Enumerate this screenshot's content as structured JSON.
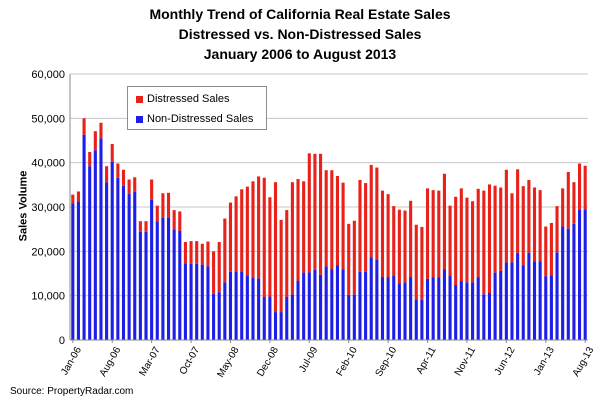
{
  "title": {
    "line1": "Monthly Trend of California Real Estate Sales",
    "line2": "Distressed vs. Non-Distressed Sales",
    "line3": "January 2006 to August 2013"
  },
  "source": "Source: PropertyRadar.com",
  "colors": {
    "distressed": "#e8211b",
    "non_distressed": "#1f1ee8",
    "grid": "#c8c8c8",
    "axis": "#888888"
  },
  "chart_data": {
    "type": "bar",
    "stacked": true,
    "title": "Monthly Trend of California Real Estate Sales",
    "subtitle": "Distressed vs. Non-Distressed Sales / January 2006 to August 2013",
    "ylabel": "Sales Volume",
    "xlabel": "",
    "ylim": [
      0,
      60000
    ],
    "yticks": [
      "0",
      "10,000",
      "20,000",
      "30,000",
      "40,000",
      "50,000",
      "60,000"
    ],
    "ytick_values": [
      0,
      10000,
      20000,
      30000,
      40000,
      50000,
      60000
    ],
    "grid": true,
    "legend": "top-left",
    "xtick_labels": [
      "Jan-06",
      "Aug-06",
      "Mar-07",
      "Oct-07",
      "May-08",
      "Dec-08",
      "Jul-09",
      "Feb-10",
      "Sep-10",
      "Apr-11",
      "Nov-11",
      "Jun-12",
      "Jan-13",
      "Aug-13"
    ],
    "xtick_indices": [
      0,
      7,
      14,
      21,
      28,
      35,
      42,
      49,
      56,
      63,
      70,
      77,
      84,
      91
    ],
    "series": [
      {
        "name": "Non-Distressed Sales",
        "values": [
          30800,
          31300,
          46300,
          39200,
          42800,
          45500,
          35600,
          40200,
          36600,
          34800,
          33000,
          33400,
          24400,
          24400,
          31600,
          26800,
          27600,
          27600,
          25000,
          24600,
          17300,
          17200,
          17200,
          17000,
          16600,
          10400,
          10800,
          13000,
          15400,
          15500,
          15500,
          14600,
          14000,
          13900,
          9700,
          9800,
          6300,
          6300,
          9700,
          10300,
          13400,
          15200,
          15300,
          15800,
          14700,
          16600,
          15900,
          16900,
          15900,
          10200,
          10300,
          15400,
          15400,
          18600,
          18200,
          14200,
          14200,
          14600,
          12800,
          13000,
          14200,
          9200,
          9100,
          13800,
          14100,
          14100,
          15900,
          14600,
          12400,
          13300,
          13000,
          13000,
          14100,
          10300,
          10600,
          15200,
          15600,
          17500,
          17500,
          19600,
          16800,
          19700,
          17700,
          17700,
          14400,
          14600,
          19800,
          25600,
          25100,
          26200,
          29400,
          29500
        ]
      },
      {
        "name": "Distressed Sales",
        "values": [
          2000,
          2200,
          3700,
          3200,
          4300,
          3500,
          3600,
          4000,
          3200,
          3600,
          3200,
          3300,
          2400,
          2400,
          4600,
          3500,
          5500,
          5600,
          4300,
          4400,
          4800,
          5100,
          5100,
          4700,
          5600,
          9600,
          11300,
          14400,
          15600,
          16900,
          18500,
          20000,
          21800,
          23000,
          26900,
          22400,
          29300,
          20800,
          19600,
          25300,
          22900,
          20600,
          26800,
          26200,
          27300,
          21700,
          22400,
          20100,
          19600,
          16000,
          16600,
          20700,
          20000,
          20900,
          20700,
          19500,
          18700,
          15600,
          16600,
          16200,
          17200,
          16800,
          16400,
          20400,
          19700,
          19600,
          21600,
          15700,
          19900,
          20900,
          19100,
          18300,
          20000,
          23400,
          24500,
          19600,
          18800,
          20900,
          15600,
          18900,
          17900,
          16400,
          16700,
          16100,
          11200,
          11800,
          10400,
          8600,
          12800,
          9400,
          10400,
          9800
        ]
      }
    ]
  }
}
